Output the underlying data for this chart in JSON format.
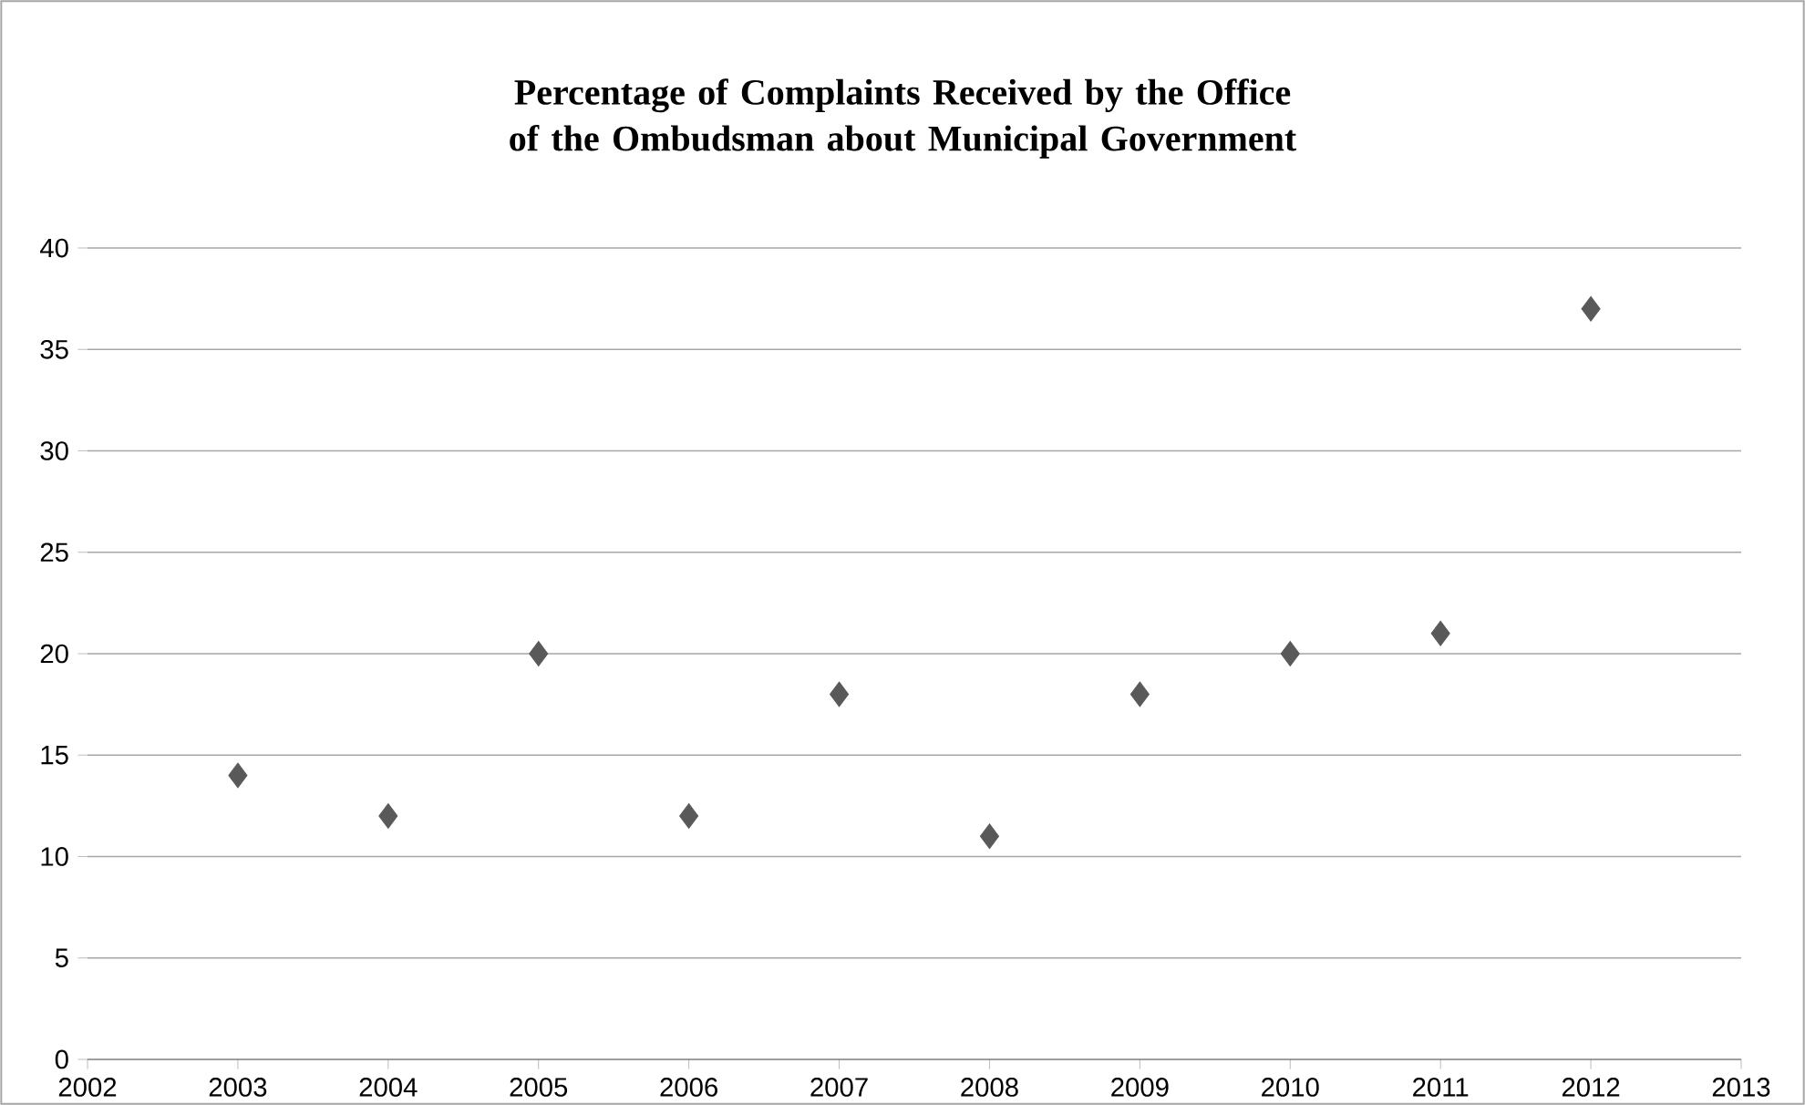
{
  "chart_data": {
    "type": "scatter",
    "title": "Percentage of Complaints Received by the Office of the Ombudsman about Municipal Government",
    "x": [
      2003,
      2004,
      2005,
      2006,
      2007,
      2008,
      2009,
      2010,
      2011,
      2012
    ],
    "values": [
      14,
      12,
      20,
      12,
      18,
      11,
      18,
      20,
      21,
      37
    ],
    "color": "#595959",
    "marker": "diamond",
    "grid": "y",
    "xlim": [
      2002,
      2013
    ],
    "xticks": [
      2002,
      2003,
      2004,
      2005,
      2006,
      2007,
      2008,
      2009,
      2010,
      2011,
      2012,
      2013
    ],
    "ylim": [
      0,
      40
    ],
    "yticks": [
      0,
      5,
      10,
      15,
      20,
      25,
      30,
      35,
      40
    ]
  }
}
